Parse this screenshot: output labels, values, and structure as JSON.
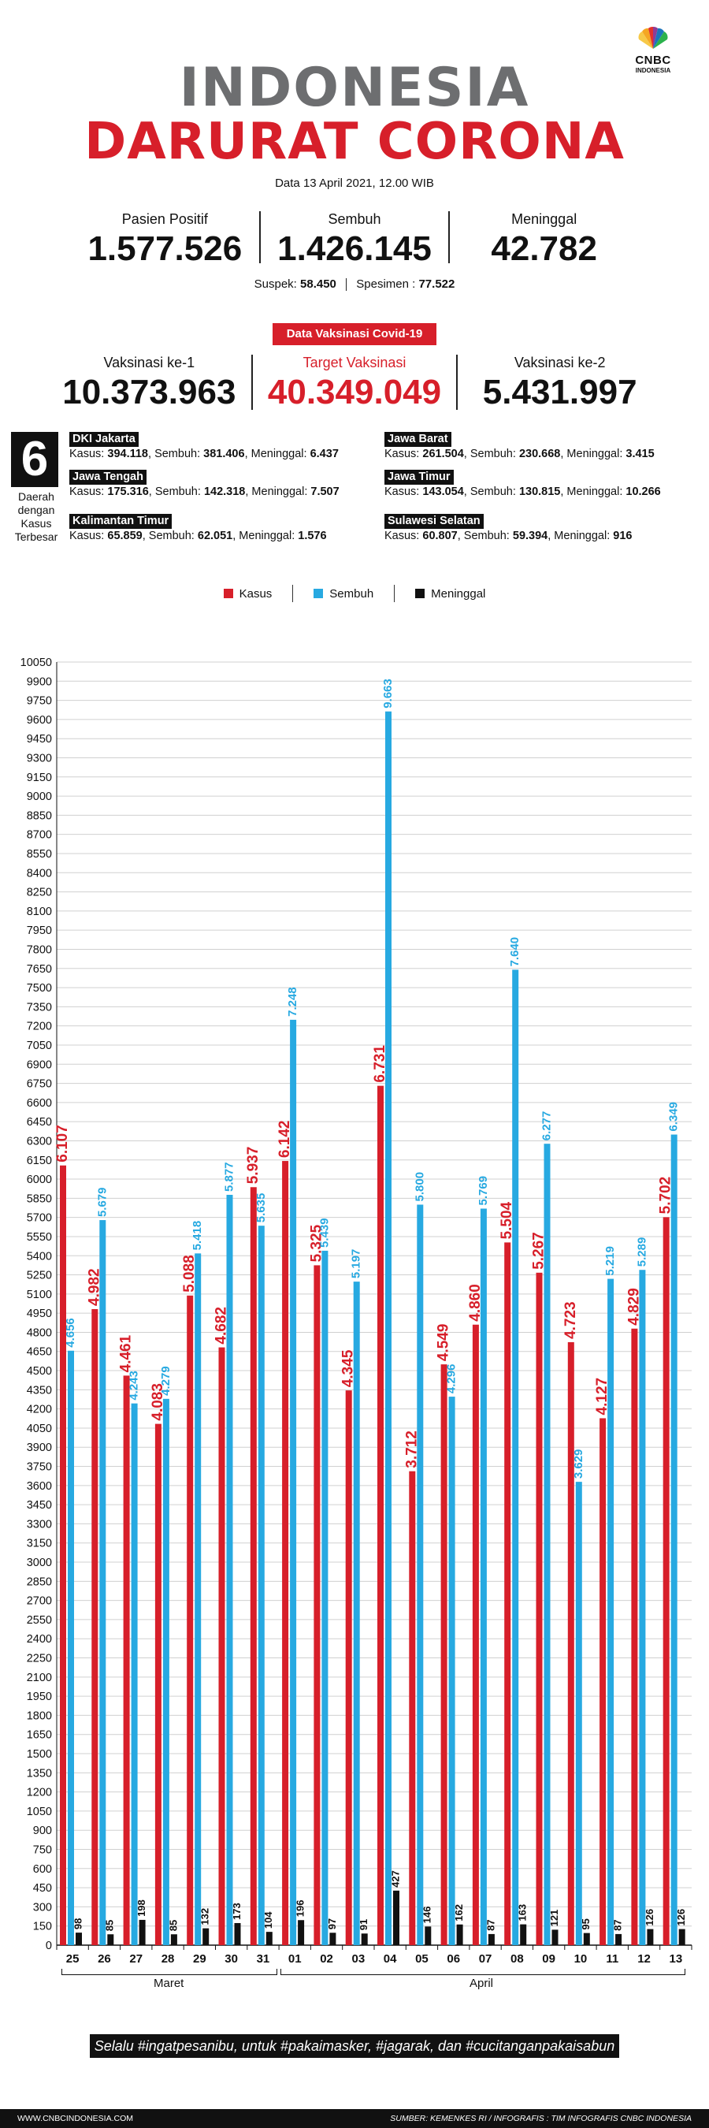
{
  "brand": {
    "line1": "CNBC",
    "line2": "INDONESIA"
  },
  "title": {
    "line1": "INDONESIA",
    "line2": "DARURAT CORONA"
  },
  "date": "Data 13 April 2021, 12.00 WIB",
  "stats": [
    {
      "label": "Pasien Positif",
      "value": "1.577.526"
    },
    {
      "label": "Sembuh",
      "value": "1.426.145"
    },
    {
      "label": "Meninggal",
      "value": "42.782"
    }
  ],
  "suspek": {
    "label": "Suspek:",
    "value": "58.450",
    "label2": "Spesimen :",
    "value2": "77.522"
  },
  "vaksin": {
    "badge": "Data Vaksinasi Covid-19",
    "items": [
      {
        "label": "Vaksinasi ke-1",
        "value": "10.373.963"
      },
      {
        "label": "Target Vaksinasi",
        "value": "40.349.049"
      },
      {
        "label": "Vaksinasi ke-2",
        "value": "5.431.997"
      }
    ]
  },
  "regions": {
    "count": "6",
    "caption": [
      "Daerah",
      "dengan",
      "Kasus",
      "Terbesar"
    ],
    "items": [
      {
        "name": "DKI Jakarta",
        "kasus": "394.118",
        "sembuh": "381.406",
        "meninggal": "6.437"
      },
      {
        "name": "Jawa Barat",
        "kasus": "261.504",
        "sembuh": "230.668",
        "meninggal": "3.415"
      },
      {
        "name": "Jawa Tengah",
        "kasus": "175.316",
        "sembuh": "142.318",
        "meninggal": "7.507"
      },
      {
        "name": "Jawa Timur",
        "kasus": "143.054",
        "sembuh": "130.815",
        "meninggal": "10.266"
      },
      {
        "name": "Kalimantan Timur",
        "kasus": "65.859",
        "sembuh": "62.051",
        "meninggal": "1.576"
      },
      {
        "name": "Sulawesi Selatan",
        "kasus": "60.807",
        "sembuh": "59.394",
        "meninggal": "916"
      }
    ],
    "labels": {
      "kasus": "Kasus:",
      "sembuh": "Sembuh:",
      "meninggal": "Meninggal:"
    }
  },
  "colors": {
    "kasus": "#d71f2a",
    "sembuh": "#27a9e1",
    "meninggal": "#111111"
  },
  "chart_data": {
    "type": "bar",
    "categories": [
      "25",
      "26",
      "27",
      "28",
      "29",
      "30",
      "31",
      "01",
      "02",
      "03",
      "04",
      "05",
      "06",
      "07",
      "08",
      "09",
      "10",
      "11",
      "12",
      "13"
    ],
    "series": [
      {
        "name": "Kasus",
        "values": [
          6107,
          4982,
          4461,
          4083,
          5088,
          4682,
          5937,
          6142,
          5325,
          4345,
          6731,
          3712,
          4549,
          4860,
          5504,
          5267,
          4723,
          4127,
          4829,
          5702
        ],
        "labels": [
          "6.107",
          "4.982",
          "4.461",
          "4.083",
          "5.088",
          "4.682",
          "5.937",
          "6.142",
          "5.325",
          "4.345",
          "6.731",
          "3.712",
          "4.549",
          "4.860",
          "5.504",
          "5.267",
          "4.723",
          "4.127",
          "4.829",
          "5.702"
        ]
      },
      {
        "name": "Sembuh",
        "values": [
          4656,
          5679,
          4243,
          4279,
          5418,
          5877,
          5635,
          7248,
          5439,
          5197,
          9663,
          5800,
          4296,
          5769,
          7640,
          6277,
          3629,
          5219,
          5289,
          6349
        ],
        "labels": [
          "4.656",
          "5.679",
          "4.243",
          "4.279",
          "5.418",
          "5.877",
          "5.635",
          "7.248",
          "5.439",
          "5.197",
          "9.663",
          "5.800",
          "4.296",
          "5.769",
          "7.640",
          "6.277",
          "3.629",
          "5.219",
          "5.289",
          "6.349"
        ]
      },
      {
        "name": "Meninggal",
        "values": [
          98,
          85,
          198,
          85,
          132,
          173,
          104,
          196,
          97,
          91,
          427,
          146,
          162,
          87,
          163,
          121,
          95,
          87,
          126,
          126
        ],
        "labels": [
          "98",
          "85",
          "198",
          "85",
          "132",
          "173",
          "104",
          "196",
          "97",
          "91",
          "427",
          "146",
          "162",
          "87",
          "163",
          "121",
          "95",
          "87",
          "126",
          "126"
        ]
      }
    ],
    "ylim": [
      0,
      10050
    ],
    "ytick_step": 150,
    "grid": true,
    "legend": "top",
    "months": [
      "Maret",
      "April"
    ]
  },
  "slogan": "Selalu #ingatpesanibu, untuk #pakaimasker, #jagarak, dan #cucitanganpakaisabun",
  "footer": {
    "left": "WWW.CNBCINDONESIA.COM",
    "right": "SUMBER: KEMENKES RI / INFOGRAFIS : TIM INFOGRAFIS CNBC INDONESIA"
  }
}
